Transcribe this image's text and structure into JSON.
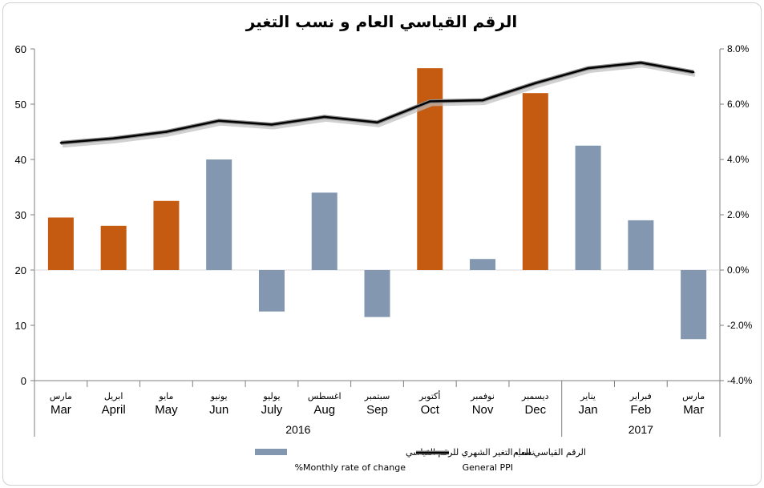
{
  "chart_data": {
    "type": "bar",
    "title": "الرقم القياسي العام و نسب التغير",
    "categories_ar": [
      "مارس",
      "ابريل",
      "مايو",
      "يونيو",
      "يوليو",
      "اغسطس",
      "سبتمبر",
      "أكتوبر",
      "نوفمبر",
      "ديسمبر",
      "يناير",
      "فبراير",
      "مارس"
    ],
    "categories": [
      "Mar",
      "April",
      "May",
      "Jun",
      "July",
      "Aug",
      "Sep",
      "Oct",
      "Nov",
      "Dec",
      "Jan",
      "Feb",
      "Mar"
    ],
    "years": [
      {
        "label": "2016",
        "span": [
          0,
          9
        ]
      },
      {
        "label": "2017",
        "span": [
          10,
          12
        ]
      }
    ],
    "left_axis": {
      "ylim": [
        0,
        60
      ],
      "ticks": [
        "0",
        "10",
        "20",
        "30",
        "40",
        "50",
        "60"
      ]
    },
    "right_axis": {
      "ylim": [
        -4.0,
        8.0
      ],
      "ticks": [
        "-4.0%",
        "-2.0%",
        "0.0%",
        "2.0%",
        "4.0%",
        "6.0%",
        "8.0%"
      ]
    },
    "series": [
      {
        "name": "نسب التغير الشهري للرقم القياسي %Monthly rate of change",
        "kind": "bar",
        "axis": "right",
        "unit": "%",
        "values": [
          1.9,
          1.6,
          2.5,
          4.0,
          -1.5,
          2.8,
          -1.7,
          7.3,
          0.4,
          6.4,
          4.5,
          1.8,
          -2.5
        ],
        "colors": [
          "#c55a11",
          "#c55a11",
          "#c55a11",
          "#8497b0",
          "#8497b0",
          "#8497b0",
          "#8497b0",
          "#c55a11",
          "#8497b0",
          "#c55a11",
          "#8497b0",
          "#8497b0",
          "#8497b0"
        ]
      },
      {
        "name": "الرقم القياسي العام General PPI",
        "kind": "line",
        "axis": "left",
        "values": [
          43.0,
          43.8,
          45.0,
          47.0,
          46.3,
          47.7,
          46.7,
          50.5,
          50.7,
          53.8,
          56.5,
          57.5,
          55.8
        ],
        "color": "#000000"
      }
    ],
    "legend": {
      "placement": "bottom",
      "items": [
        {
          "ar": "نسب التغير الشهري للرقم القياسي",
          "en": "%Monthly rate of change",
          "swatch": "#8497b0"
        },
        {
          "ar": "الرقم القياسي العام",
          "en": "General  PPI",
          "swatch": "#000000"
        }
      ]
    },
    "grid": false
  }
}
